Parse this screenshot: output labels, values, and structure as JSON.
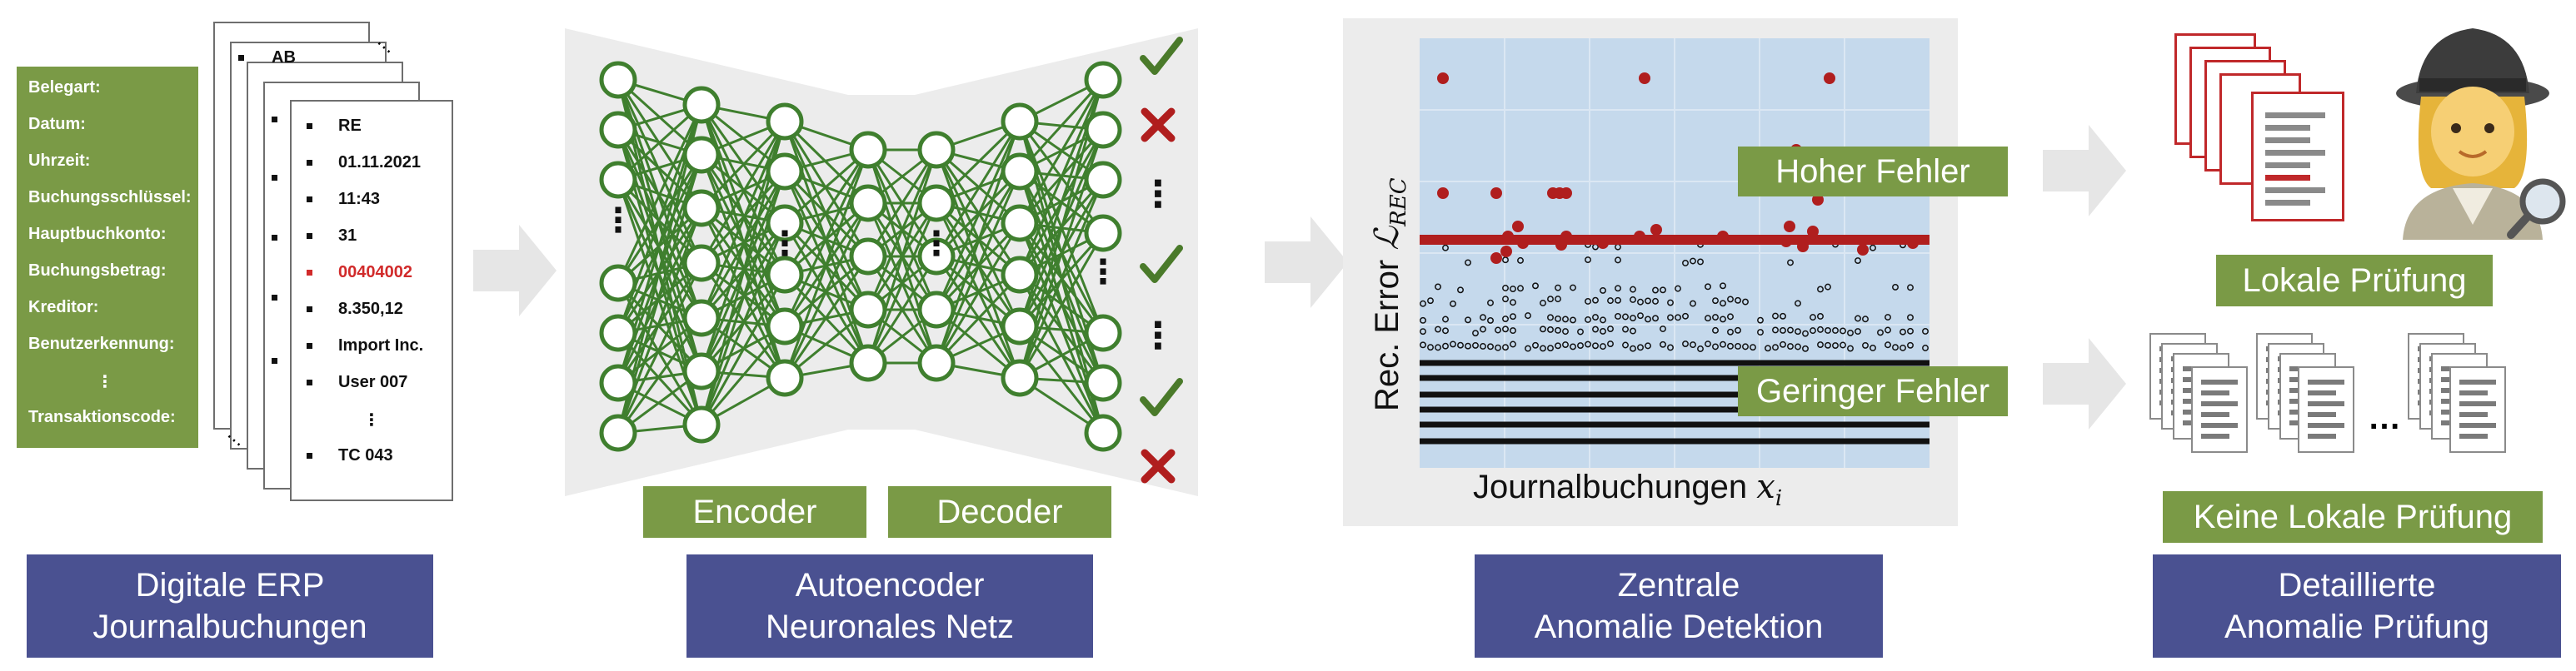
{
  "fields": {
    "labels": [
      "Belegart:",
      "Datum:",
      "Uhrzeit:",
      "Buchungsschlüssel:",
      "Hauptbuchkonto:",
      "Buchungsbetrag:",
      "Kreditor:",
      "Benutzerkennung:",
      "⋮",
      "Transaktionscode:"
    ]
  },
  "document": {
    "back_value": "AB",
    "values": [
      "RE",
      "01.11.2021",
      "11:43",
      "31",
      "00404002",
      "8.350,12",
      "Import Inc.",
      "User 007",
      "⋮",
      "TC 043"
    ],
    "highlight_index": 4,
    "highlight_color": "#d12a2a"
  },
  "network": {
    "encoder_label": "Encoder",
    "decoder_label": "Decoder",
    "node_color": "#3f7f2e",
    "outputs": [
      "check",
      "cross",
      "dots",
      "check",
      "dots",
      "check",
      "cross"
    ]
  },
  "plot": {
    "ylabel": "Rec. Error",
    "ylabel_math": "ℒ",
    "ylabel_math_sub": "REC",
    "xlabel": "Journalbuchungen",
    "xlabel_math": "x",
    "xlabel_math_sub": "i",
    "high_error_label": "Hoher Fehler",
    "low_error_label": "Geringer Fehler",
    "threshold_color": "#b01e1e",
    "point_color": "#b01e1e"
  },
  "results": {
    "local_label": "Lokale Prüfung",
    "no_local_label": "Keine Lokale Prüfung",
    "dots": "…"
  },
  "captions": {
    "stage1": [
      "Digitale ERP",
      "Journalbuchungen"
    ],
    "stage2": [
      "Autoencoder",
      "Neuronales Netz"
    ],
    "stage3": [
      "Zentrale",
      "Anomalie Detektion"
    ],
    "stage4": [
      "Detaillierte",
      "Anomalie Prüfung"
    ]
  },
  "colors": {
    "green": "#7a9a46",
    "blue": "#4a5191",
    "red": "#b01e1e",
    "node": "#3f7f2e"
  }
}
